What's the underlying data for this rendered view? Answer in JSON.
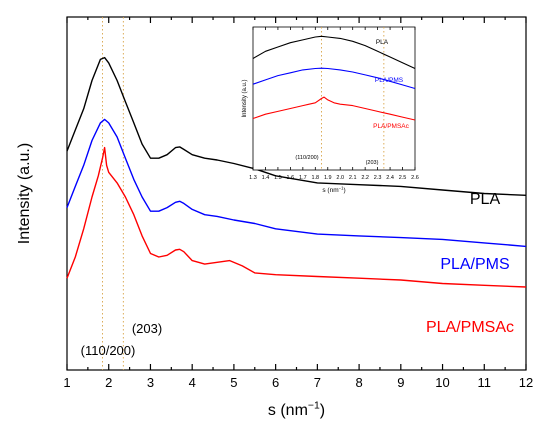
{
  "chart_data": [
    {
      "type": "line",
      "xlabel": "s (nm",
      "xlabel_sup": "−1",
      "xlabel_close": ")",
      "ylabel": "Intensity (a.u.)",
      "xlim": [
        1,
        12
      ],
      "x_ticks": [
        "1",
        "2",
        "3",
        "4",
        "5",
        "6",
        "7",
        "8",
        "9",
        "10",
        "11",
        "12"
      ],
      "y_ticks_shown": false,
      "reference_lines": [
        1.85,
        2.35
      ],
      "annotations": [
        "(110/200)",
        "(203)"
      ],
      "series": [
        {
          "name": "PLA",
          "color": "#000000",
          "x": [
            1.0,
            1.2,
            1.4,
            1.6,
            1.8,
            1.9,
            2.0,
            2.2,
            2.4,
            2.6,
            2.8,
            3.0,
            3.2,
            3.4,
            3.6,
            3.7,
            3.8,
            4.0,
            4.3,
            4.6,
            5.0,
            5.5,
            6.0,
            7.0,
            8.0,
            9.0,
            10.0,
            11.0,
            12.0
          ],
          "y": [
            0.62,
            0.68,
            0.74,
            0.82,
            0.88,
            0.885,
            0.87,
            0.82,
            0.76,
            0.7,
            0.64,
            0.6,
            0.6,
            0.61,
            0.63,
            0.632,
            0.625,
            0.61,
            0.6,
            0.595,
            0.585,
            0.57,
            0.55,
            0.53,
            0.525,
            0.52,
            0.51,
            0.5,
            0.495
          ]
        },
        {
          "name": "PLA/PMS",
          "color": "#0000ff",
          "x": [
            1.0,
            1.2,
            1.4,
            1.6,
            1.8,
            1.9,
            2.0,
            2.2,
            2.4,
            2.6,
            2.8,
            3.0,
            3.2,
            3.4,
            3.6,
            3.7,
            3.8,
            4.0,
            4.3,
            4.6,
            5.0,
            5.5,
            6.0,
            7.0,
            8.0,
            9.0,
            10.0,
            11.0,
            12.0
          ],
          "y": [
            0.46,
            0.52,
            0.58,
            0.65,
            0.7,
            0.71,
            0.7,
            0.66,
            0.6,
            0.54,
            0.49,
            0.45,
            0.45,
            0.46,
            0.475,
            0.478,
            0.472,
            0.455,
            0.44,
            0.435,
            0.425,
            0.415,
            0.4,
            0.385,
            0.38,
            0.375,
            0.37,
            0.36,
            0.35
          ]
        },
        {
          "name": "PLA/PMSAc",
          "color": "#ff0000",
          "x": [
            1.0,
            1.2,
            1.4,
            1.6,
            1.75,
            1.85,
            1.9,
            1.95,
            2.0,
            2.2,
            2.4,
            2.6,
            2.8,
            3.0,
            3.2,
            3.4,
            3.6,
            3.7,
            3.8,
            4.0,
            4.3,
            4.6,
            4.9,
            5.2,
            5.5,
            6.0,
            7.0,
            8.0,
            9.0,
            10.0,
            11.0,
            12.0
          ],
          "y": [
            0.26,
            0.32,
            0.4,
            0.49,
            0.55,
            0.6,
            0.63,
            0.58,
            0.56,
            0.53,
            0.49,
            0.44,
            0.38,
            0.33,
            0.32,
            0.325,
            0.34,
            0.342,
            0.335,
            0.31,
            0.3,
            0.305,
            0.31,
            0.295,
            0.275,
            0.27,
            0.265,
            0.26,
            0.255,
            0.245,
            0.24,
            0.235
          ]
        }
      ]
    },
    {
      "type": "line",
      "xlabel": "s (nm",
      "xlabel_sup": "−1",
      "xlabel_close": ")",
      "ylabel": "Intensity (a.u.)",
      "xlim": [
        1.3,
        2.6
      ],
      "x_ticks": [
        "1.3",
        "1.4",
        "1.5",
        "1.6",
        "1.7",
        "1.8",
        "1.9",
        "2.0",
        "2.1",
        "2.2",
        "2.3",
        "2.4",
        "2.5",
        "2.6"
      ],
      "y_ticks_shown": false,
      "reference_lines": [
        1.85,
        2.35
      ],
      "annotations": [
        "(110/200)",
        "(203)"
      ],
      "series": [
        {
          "name": "PLA",
          "color": "#000000",
          "x": [
            1.3,
            1.4,
            1.5,
            1.6,
            1.7,
            1.8,
            1.85,
            1.9,
            2.0,
            2.1,
            2.2,
            2.3,
            2.4,
            2.5,
            2.6
          ],
          "y": [
            0.78,
            0.83,
            0.86,
            0.89,
            0.91,
            0.93,
            0.935,
            0.93,
            0.92,
            0.9,
            0.87,
            0.83,
            0.79,
            0.75,
            0.71
          ]
        },
        {
          "name": "PLA/PMS",
          "color": "#0000ff",
          "x": [
            1.3,
            1.4,
            1.5,
            1.6,
            1.7,
            1.8,
            1.85,
            1.9,
            2.0,
            2.1,
            2.2,
            2.3,
            2.4,
            2.5,
            2.6
          ],
          "y": [
            0.6,
            0.63,
            0.66,
            0.68,
            0.7,
            0.71,
            0.712,
            0.71,
            0.7,
            0.685,
            0.665,
            0.645,
            0.62,
            0.595,
            0.57
          ]
        },
        {
          "name": "PLA/PMSAc",
          "color": "#ff0000",
          "x": [
            1.3,
            1.4,
            1.5,
            1.6,
            1.7,
            1.75,
            1.8,
            1.85,
            1.87,
            1.9,
            1.95,
            2.0,
            2.1,
            2.2,
            2.3,
            2.4,
            2.5,
            2.6
          ],
          "y": [
            0.36,
            0.39,
            0.41,
            0.43,
            0.45,
            0.46,
            0.47,
            0.5,
            0.51,
            0.49,
            0.47,
            0.46,
            0.45,
            0.43,
            0.41,
            0.39,
            0.37,
            0.35
          ]
        }
      ]
    }
  ]
}
